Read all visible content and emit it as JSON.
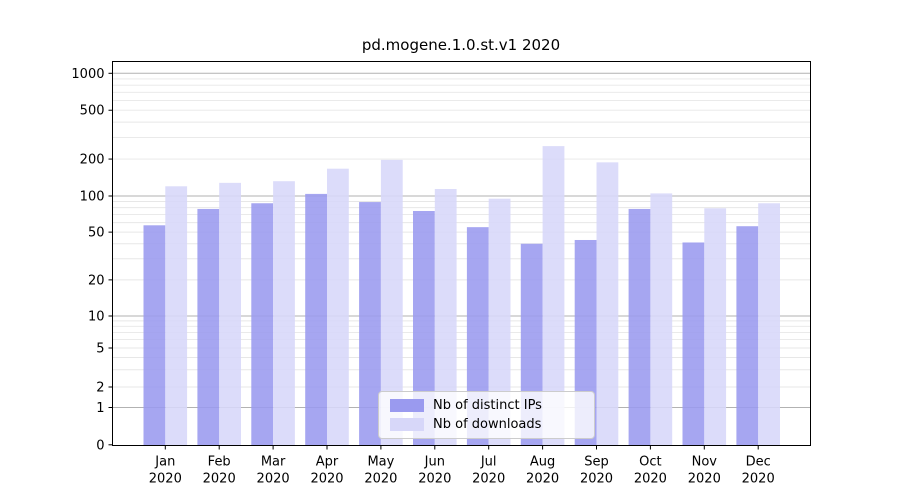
{
  "chart_data": {
    "type": "bar",
    "title": "pd.mogene.1.0.st.v1 2020",
    "categories": [
      "Jan",
      "Feb",
      "Mar",
      "Apr",
      "May",
      "Jun",
      "Jul",
      "Aug",
      "Sep",
      "Oct",
      "Nov",
      "Dec"
    ],
    "x_tick_second_line": "2020",
    "series": [
      {
        "name": "Nb of distinct IPs",
        "color": "#9a9aef",
        "values": [
          57,
          78,
          87,
          104,
          89,
          75,
          55,
          40,
          43,
          78,
          41,
          56
        ]
      },
      {
        "name": "Nb of downloads",
        "color": "#d7d7f9",
        "values": [
          120,
          128,
          132,
          167,
          197,
          114,
          95,
          255,
          188,
          105,
          79,
          87
        ]
      }
    ],
    "yscale": "symlog",
    "yticks": [
      0,
      1,
      2,
      5,
      10,
      20,
      50,
      100,
      200,
      500,
      1000
    ],
    "ylim": [
      0,
      1250
    ],
    "grid": {
      "major_color": "#b2b2b2",
      "minor_color": "#e7e7e7",
      "grid_on": true
    },
    "legend_position": "lower center",
    "bar_opacity": 0.88
  }
}
